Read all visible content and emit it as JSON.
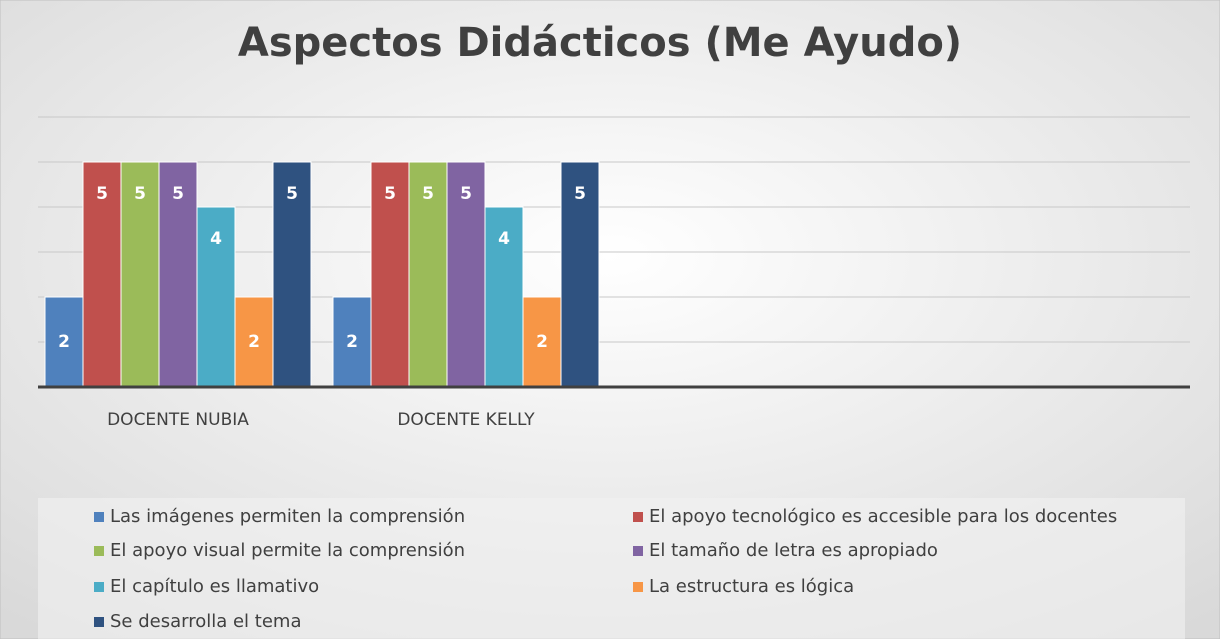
{
  "chart_data": {
    "type": "bar",
    "title": "Aspectos Didácticos (Me Ayudo)",
    "categories": [
      "DOCENTE NUBIA",
      "DOCENTE KELLY",
      null,
      null
    ],
    "series": [
      {
        "name": "Las imágenes permiten la comprensión",
        "color": "#4f81bd",
        "values": [
          2,
          2,
          null,
          null
        ]
      },
      {
        "name": "El apoyo tecnológico es accesible para los docentes",
        "color": "#c0504d",
        "values": [
          5,
          5,
          null,
          null
        ]
      },
      {
        "name": "El apoyo visual permite la comprensión",
        "color": "#9bbb59",
        "values": [
          5,
          5,
          null,
          null
        ]
      },
      {
        "name": "El tamaño de letra es apropiado",
        "color": "#8064a2",
        "values": [
          5,
          5,
          null,
          null
        ]
      },
      {
        "name": "El capítulo es llamativo",
        "color": "#4bacc6",
        "values": [
          4,
          4,
          null,
          null
        ]
      },
      {
        "name": "La estructura es lógica",
        "color": "#f79646",
        "values": [
          2,
          2,
          null,
          null
        ]
      },
      {
        "name": "Se desarrolla el tema",
        "color": "#2f5280",
        "values": [
          5,
          5,
          null,
          null
        ]
      }
    ],
    "ylim": [
      0,
      6
    ],
    "yticks": [
      0,
      1,
      2,
      3,
      4,
      5,
      6
    ],
    "grid": true,
    "legend": "bottom"
  }
}
